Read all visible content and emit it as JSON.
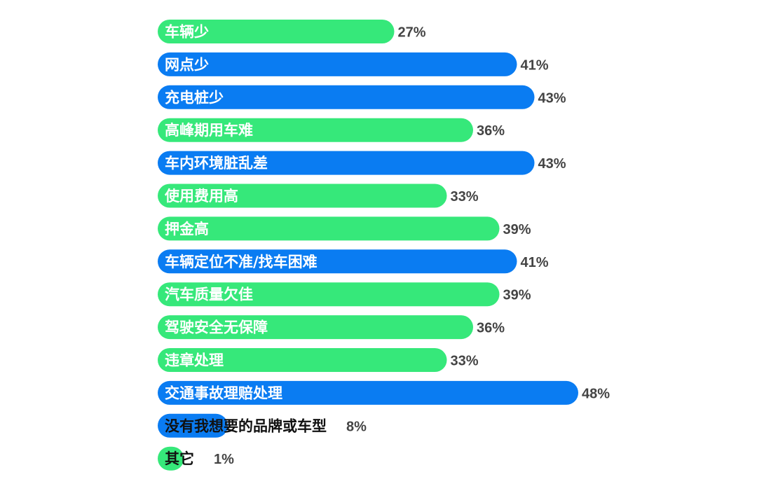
{
  "chart_data": {
    "type": "bar",
    "orientation": "horizontal",
    "categories": [
      "车辆少",
      "网点少",
      "充电桩少",
      "高峰期用车难",
      "车内环境脏乱差",
      "使用费用高",
      "押金高",
      "车辆定位不准/找车困难",
      "汽车质量欠佳",
      "驾驶安全无保障",
      "违章处理",
      "交通事故理赔处理",
      "没有我想要的品牌或车型",
      "其它"
    ],
    "values": [
      27,
      41,
      43,
      36,
      43,
      33,
      39,
      41,
      39,
      36,
      33,
      48,
      8,
      1
    ],
    "value_labels": [
      "27%",
      "41%",
      "43%",
      "36%",
      "43%",
      "33%",
      "39%",
      "41%",
      "39%",
      "36%",
      "33%",
      "48%",
      "8%",
      "1%"
    ],
    "bar_colors": [
      "#36e87a",
      "#0a7cf2",
      "#0a7cf2",
      "#36e87a",
      "#0a7cf2",
      "#36e87a",
      "#36e87a",
      "#0a7cf2",
      "#36e87a",
      "#36e87a",
      "#36e87a",
      "#0a7cf2",
      "#0a7cf2",
      "#36e87a"
    ],
    "unit": "%",
    "xlim": [
      0,
      50
    ],
    "grid": false,
    "legend": "none"
  }
}
